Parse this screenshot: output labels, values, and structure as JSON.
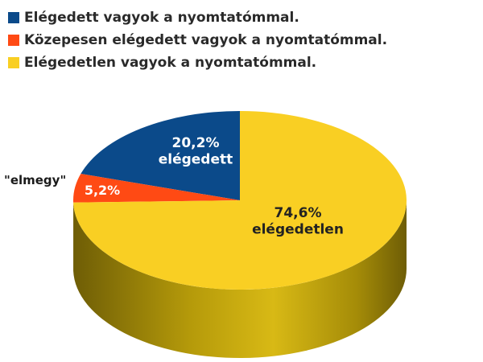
{
  "legend": [
    {
      "label": "Elégedett vagyok a nyomtatómmal.",
      "color": "#0b4a8a"
    },
    {
      "label": "Közepesen elégedett vagyok a nyomtatómmal.",
      "color": "#ff4a14"
    },
    {
      "label": "Elégedetlen vagyok a nyomtatómmal.",
      "color": "#f9cf23"
    }
  ],
  "chart_data": {
    "type": "pie",
    "style": "3d",
    "categories": [
      "Elégedett vagyok a nyomtatómmal.",
      "Közepesen elégedett vagyok a nyomtatómmal.",
      "Elégedetlen vagyok a nyomtatómmal."
    ],
    "values": [
      20.2,
      5.2,
      74.6
    ],
    "colors": [
      "#0b4a8a",
      "#ff4a14",
      "#f9cf23"
    ],
    "side_colors": [
      "#08335f",
      "#b5330c",
      "#9a8205"
    ],
    "data_labels": [
      {
        "value": "20,2%",
        "text": "elégedett"
      },
      {
        "value": "5,2%",
        "text": ""
      },
      {
        "value": "74,6%",
        "text": "elégedetlen"
      }
    ],
    "annotation": "\"elmegy\"",
    "legend_position": "top-left"
  }
}
